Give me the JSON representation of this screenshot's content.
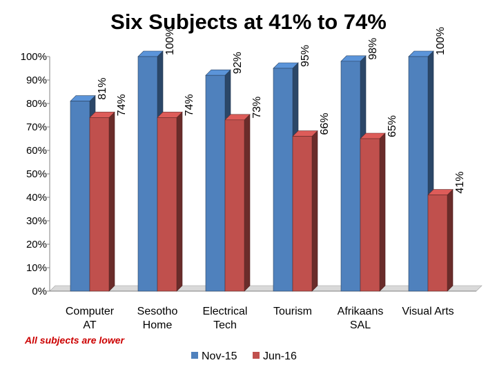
{
  "chart_data": {
    "type": "bar",
    "title": "Six Subjects at 41% to 74%",
    "categories": [
      [
        "Computer",
        "AT"
      ],
      [
        "Sesotho",
        "Home"
      ],
      [
        "Electrical",
        "Tech"
      ],
      [
        "Tourism"
      ],
      [
        "Afrikaans",
        "SAL"
      ],
      [
        "Visual Arts"
      ]
    ],
    "series": [
      {
        "name": "Nov-15",
        "values": [
          81,
          100,
          92,
          95,
          98,
          100
        ],
        "labels": [
          "81%",
          "100%",
          "92%",
          "95%",
          "98%",
          "100%"
        ],
        "color": "#4f81bd"
      },
      {
        "name": "Jun-16",
        "values": [
          74,
          74,
          73,
          66,
          65,
          41
        ],
        "labels": [
          "74%",
          "74%",
          "73%",
          "66%",
          "65%",
          "41%"
        ],
        "color": "#c0504d"
      }
    ],
    "ylim": [
      0,
      100
    ],
    "yticks": [
      "0%",
      "10%",
      "20%",
      "30%",
      "40%",
      "50%",
      "60%",
      "70%",
      "80%",
      "90%",
      "100%"
    ],
    "xlabel": "",
    "ylabel": "",
    "grid": false,
    "legend": "bottom",
    "annotation": "All subjects are lower"
  }
}
